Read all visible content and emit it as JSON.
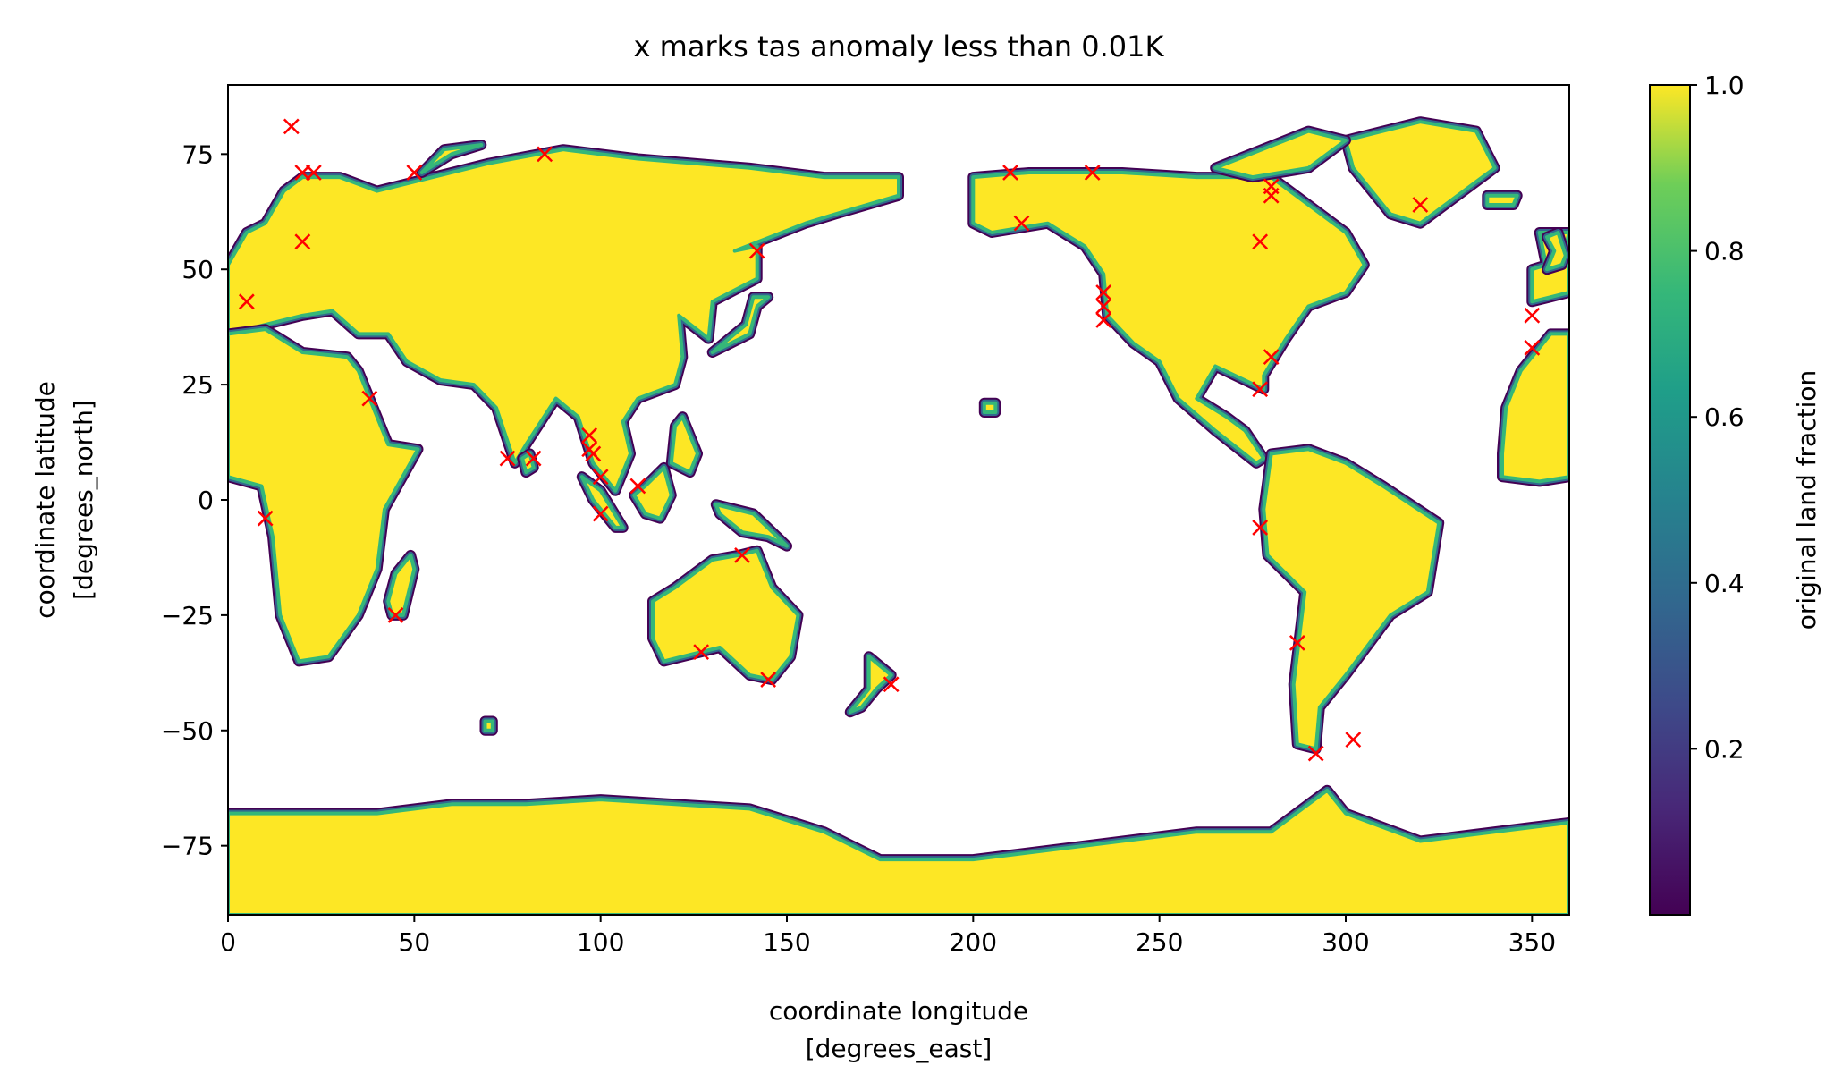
{
  "chart_data": {
    "type": "heatmap",
    "title": "x marks tas anomaly less than 0.01K",
    "xlabel": "coordinate longitude\n[degrees_east]",
    "xlabel_lines": [
      "coordinate longitude",
      "[degrees_east]"
    ],
    "ylabel_lines": [
      "coordinate latitude",
      "[degrees_north]"
    ],
    "xlim": [
      0,
      360
    ],
    "ylim": [
      -90,
      90
    ],
    "xticks": [
      0,
      50,
      100,
      150,
      200,
      250,
      300,
      350
    ],
    "yticks": [
      -75,
      -50,
      -25,
      0,
      25,
      50,
      75
    ],
    "xtick_labels": [
      "0",
      "50",
      "100",
      "150",
      "200",
      "250",
      "300",
      "350"
    ],
    "ytick_labels": [
      "−75",
      "−50",
      "−25",
      "0",
      "25",
      "50",
      "75"
    ],
    "colorbar": {
      "label": "original land fraction",
      "range": [
        0,
        1
      ],
      "ticks": [
        0.2,
        0.4,
        0.6,
        0.8,
        1.0
      ],
      "tick_labels": [
        "0.2",
        "0.4",
        "0.6",
        "0.8",
        "1.0"
      ],
      "colormap": "viridis"
    },
    "colors": {
      "land": "#fde725",
      "coast": "#35b779",
      "shelf": "#31688e",
      "edge": "#440154",
      "marker": "#ff0000"
    },
    "land_polygons": [
      {
        "name": "eurasia",
        "pts": [
          [
            0,
            36
          ],
          [
            10,
            38
          ],
          [
            20,
            40
          ],
          [
            28,
            41
          ],
          [
            35,
            36
          ],
          [
            43,
            36
          ],
          [
            48,
            30
          ],
          [
            57,
            26
          ],
          [
            66,
            25
          ],
          [
            72,
            20
          ],
          [
            77,
            8
          ],
          [
            80,
            12
          ],
          [
            88,
            22
          ],
          [
            94,
            18
          ],
          [
            98,
            8
          ],
          [
            104,
            2
          ],
          [
            108,
            10
          ],
          [
            106,
            17
          ],
          [
            110,
            22
          ],
          [
            120,
            25
          ],
          [
            122,
            31
          ],
          [
            121,
            40
          ],
          [
            129,
            35
          ],
          [
            130,
            43
          ],
          [
            142,
            48
          ],
          [
            142,
            55
          ],
          [
            136,
            54
          ],
          [
            155,
            60
          ],
          [
            163,
            62
          ],
          [
            180,
            66
          ],
          [
            180,
            70
          ],
          [
            160,
            70
          ],
          [
            140,
            72
          ],
          [
            110,
            74
          ],
          [
            90,
            76
          ],
          [
            70,
            73
          ],
          [
            55,
            70
          ],
          [
            40,
            67
          ],
          [
            30,
            70
          ],
          [
            20,
            70
          ],
          [
            15,
            67
          ],
          [
            10,
            60
          ],
          [
            5,
            58
          ],
          [
            0,
            51
          ]
        ]
      },
      {
        "name": "africa",
        "pts": [
          [
            0,
            36
          ],
          [
            10,
            37
          ],
          [
            20,
            32
          ],
          [
            32,
            31
          ],
          [
            35,
            28
          ],
          [
            43,
            12
          ],
          [
            51,
            11
          ],
          [
            42,
            -2
          ],
          [
            40,
            -15
          ],
          [
            35,
            -25
          ],
          [
            27,
            -34
          ],
          [
            19,
            -35
          ],
          [
            14,
            -25
          ],
          [
            12,
            -8
          ],
          [
            9,
            3
          ],
          [
            0,
            5
          ]
        ]
      },
      {
        "name": "west-africa-bulge",
        "pts": [
          [
            342,
            5
          ],
          [
            352,
            4
          ],
          [
            360,
            5
          ],
          [
            360,
            36
          ],
          [
            355,
            36
          ],
          [
            347,
            28
          ],
          [
            343,
            20
          ],
          [
            342,
            10
          ]
        ]
      },
      {
        "name": "europe-west",
        "pts": [
          [
            350,
            43
          ],
          [
            355,
            44
          ],
          [
            360,
            45
          ],
          [
            360,
            51
          ],
          [
            354,
            50
          ],
          [
            352,
            58
          ],
          [
            356,
            58
          ],
          [
            360,
            58
          ],
          [
            358,
            52
          ],
          [
            350,
            50
          ]
        ]
      },
      {
        "name": "north-america",
        "pts": [
          [
            200,
            60
          ],
          [
            200,
            70
          ],
          [
            215,
            71
          ],
          [
            240,
            71
          ],
          [
            260,
            70
          ],
          [
            280,
            70
          ],
          [
            290,
            64
          ],
          [
            300,
            58
          ],
          [
            305,
            51
          ],
          [
            300,
            45
          ],
          [
            290,
            42
          ],
          [
            284,
            35
          ],
          [
            278,
            27
          ],
          [
            278,
            24
          ],
          [
            265,
            29
          ],
          [
            260,
            22
          ],
          [
            268,
            18
          ],
          [
            273,
            15
          ],
          [
            278,
            9
          ],
          [
            276,
            8
          ],
          [
            265,
            15
          ],
          [
            255,
            22
          ],
          [
            250,
            30
          ],
          [
            243,
            34
          ],
          [
            236,
            40
          ],
          [
            235,
            49
          ],
          [
            230,
            55
          ],
          [
            220,
            60
          ],
          [
            205,
            58
          ]
        ]
      },
      {
        "name": "greenland",
        "pts": [
          [
            300,
            78
          ],
          [
            320,
            82
          ],
          [
            335,
            80
          ],
          [
            340,
            72
          ],
          [
            320,
            60
          ],
          [
            312,
            62
          ],
          [
            302,
            72
          ]
        ]
      },
      {
        "name": "south-america",
        "pts": [
          [
            280,
            10
          ],
          [
            290,
            11
          ],
          [
            300,
            8
          ],
          [
            310,
            3
          ],
          [
            325,
            -5
          ],
          [
            322,
            -20
          ],
          [
            312,
            -25
          ],
          [
            300,
            -38
          ],
          [
            293,
            -45
          ],
          [
            292,
            -54
          ],
          [
            287,
            -53
          ],
          [
            286,
            -40
          ],
          [
            289,
            -20
          ],
          [
            279,
            -12
          ],
          [
            278,
            -2
          ]
        ]
      },
      {
        "name": "australia",
        "pts": [
          [
            114,
            -22
          ],
          [
            120,
            -19
          ],
          [
            130,
            -13
          ],
          [
            137,
            -12
          ],
          [
            142,
            -11
          ],
          [
            146,
            -19
          ],
          [
            153,
            -25
          ],
          [
            151,
            -34
          ],
          [
            146,
            -39
          ],
          [
            140,
            -38
          ],
          [
            132,
            -32
          ],
          [
            117,
            -35
          ],
          [
            114,
            -30
          ]
        ]
      },
      {
        "name": "antarctica",
        "pts": [
          [
            0,
            -68
          ],
          [
            40,
            -68
          ],
          [
            60,
            -66
          ],
          [
            80,
            -66
          ],
          [
            100,
            -65
          ],
          [
            120,
            -66
          ],
          [
            140,
            -67
          ],
          [
            160,
            -72
          ],
          [
            175,
            -78
          ],
          [
            200,
            -78
          ],
          [
            230,
            -75
          ],
          [
            260,
            -72
          ],
          [
            280,
            -72
          ],
          [
            295,
            -63
          ],
          [
            300,
            -68
          ],
          [
            320,
            -74
          ],
          [
            350,
            -71
          ],
          [
            360,
            -70
          ],
          [
            360,
            -90
          ],
          [
            0,
            -90
          ]
        ]
      },
      {
        "name": "madagascar",
        "pts": [
          [
            44,
            -25
          ],
          [
            47,
            -25
          ],
          [
            50,
            -15
          ],
          [
            49,
            -12
          ],
          [
            45,
            -16
          ],
          [
            43,
            -22
          ]
        ]
      },
      {
        "name": "sumatra-borneo",
        "pts": [
          [
            95,
            5
          ],
          [
            100,
            2
          ],
          [
            106,
            -6
          ],
          [
            104,
            -6
          ],
          [
            98,
            0
          ]
        ]
      },
      {
        "name": "borneo",
        "pts": [
          [
            109,
            1
          ],
          [
            112,
            -3
          ],
          [
            116,
            -4
          ],
          [
            119,
            1
          ],
          [
            117,
            7
          ],
          [
            112,
            3
          ]
        ]
      },
      {
        "name": "new-guinea",
        "pts": [
          [
            131,
            -1
          ],
          [
            141,
            -3
          ],
          [
            150,
            -10
          ],
          [
            145,
            -8
          ],
          [
            138,
            -7
          ],
          [
            132,
            -3
          ]
        ]
      },
      {
        "name": "japan",
        "pts": [
          [
            130,
            32
          ],
          [
            135,
            34
          ],
          [
            140,
            36
          ],
          [
            142,
            42
          ],
          [
            145,
            44
          ],
          [
            141,
            44
          ],
          [
            139,
            38
          ],
          [
            133,
            34
          ]
        ]
      },
      {
        "name": "uk",
        "pts": [
          [
            354,
            50
          ],
          [
            358,
            51
          ],
          [
            359,
            53
          ],
          [
            357,
            58
          ],
          [
            354,
            57
          ],
          [
            356,
            54
          ]
        ]
      },
      {
        "name": "new-zealand",
        "pts": [
          [
            172,
            -34
          ],
          [
            178,
            -38
          ],
          [
            174,
            -41
          ],
          [
            170,
            -45
          ],
          [
            167,
            -46
          ],
          [
            172,
            -41
          ]
        ]
      },
      {
        "name": "iceland",
        "pts": [
          [
            338,
            64
          ],
          [
            345,
            64
          ],
          [
            346,
            66
          ],
          [
            338,
            66
          ]
        ]
      },
      {
        "name": "arctic-islands",
        "pts": [
          [
            265,
            72
          ],
          [
            290,
            80
          ],
          [
            300,
            78
          ],
          [
            290,
            72
          ],
          [
            275,
            70
          ]
        ]
      },
      {
        "name": "svalbard-nz",
        "pts": [
          [
            52,
            71
          ],
          [
            60,
            75
          ],
          [
            68,
            77
          ],
          [
            58,
            76
          ]
        ]
      },
      {
        "name": "philippines",
        "pts": [
          [
            119,
            8
          ],
          [
            124,
            6
          ],
          [
            126,
            10
          ],
          [
            122,
            18
          ],
          [
            120,
            16
          ]
        ]
      },
      {
        "name": "sri-lanka",
        "pts": [
          [
            80,
            6
          ],
          [
            82,
            7
          ],
          [
            81,
            10
          ],
          [
            79,
            9
          ]
        ]
      },
      {
        "name": "hawaii-dot",
        "pts": [
          [
            203,
            19
          ],
          [
            206,
            19
          ],
          [
            206,
            21
          ],
          [
            203,
            21
          ]
        ]
      },
      {
        "name": "kerguelen-dot",
        "pts": [
          [
            69,
            -50
          ],
          [
            71,
            -50
          ],
          [
            71,
            -48
          ],
          [
            69,
            -48
          ]
        ]
      }
    ],
    "markers": [
      [
        17,
        81
      ],
      [
        20,
        71
      ],
      [
        23,
        71
      ],
      [
        20,
        56
      ],
      [
        50,
        71
      ],
      [
        85,
        75
      ],
      [
        5,
        43
      ],
      [
        38,
        22
      ],
      [
        10,
        -4
      ],
      [
        45,
        -25
      ],
      [
        75,
        9
      ],
      [
        82,
        9
      ],
      [
        97,
        14
      ],
      [
        97,
        11
      ],
      [
        98,
        10
      ],
      [
        100,
        5
      ],
      [
        100,
        -3
      ],
      [
        110,
        3
      ],
      [
        127,
        -33
      ],
      [
        138,
        -12
      ],
      [
        145,
        -39
      ],
      [
        178,
        -40
      ],
      [
        142,
        54
      ],
      [
        210,
        71
      ],
      [
        213,
        60
      ],
      [
        232,
        71
      ],
      [
        235,
        45
      ],
      [
        235,
        42
      ],
      [
        235,
        39
      ],
      [
        277,
        56
      ],
      [
        280,
        68
      ],
      [
        280,
        66
      ],
      [
        280,
        31
      ],
      [
        277,
        24
      ],
      [
        277,
        -6
      ],
      [
        287,
        -31
      ],
      [
        292,
        -55
      ],
      [
        302,
        -52
      ],
      [
        320,
        64
      ],
      [
        350,
        40
      ],
      [
        350,
        33
      ]
    ]
  }
}
